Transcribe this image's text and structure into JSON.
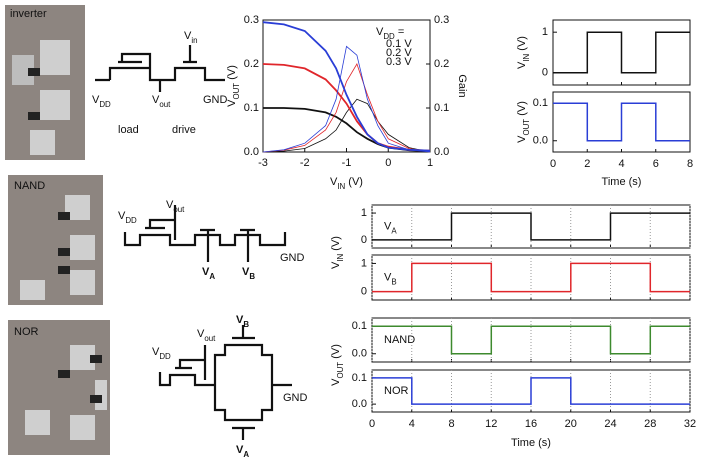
{
  "schematics": {
    "inverter": {
      "photo_label": "inverter",
      "vdd": [
        "V",
        "DD"
      ],
      "vin": [
        "V",
        "in"
      ],
      "vout": [
        "V",
        "out"
      ],
      "gnd": "GND",
      "load": "load",
      "drive": "drive"
    },
    "nand": {
      "photo_label": "NAND",
      "vdd": [
        "V",
        "DD"
      ],
      "vout": [
        "V",
        "out"
      ],
      "va": [
        "V",
        "A"
      ],
      "vb": [
        "V",
        "B"
      ],
      "gnd": "GND"
    },
    "nor": {
      "photo_label": "NOR",
      "vdd": [
        "V",
        "DD"
      ],
      "vout": [
        "V",
        "out"
      ],
      "vb": [
        "V",
        "B"
      ],
      "va": [
        "V",
        "A"
      ],
      "gnd": "GND"
    }
  },
  "chart_data": [
    {
      "type": "line",
      "xlabel": [
        "V",
        "IN",
        " (V)"
      ],
      "ylabel": [
        "V",
        "OUT",
        " (V)"
      ],
      "y2label": "Gain",
      "legend_title": [
        "V",
        "DD",
        " ="
      ],
      "x": [
        -3,
        -2.5,
        -2,
        -1.5,
        -1.25,
        -1,
        -0.75,
        -0.5,
        -0.25,
        0,
        0.5,
        1
      ],
      "xlim": [
        -3,
        1
      ],
      "xticks": [
        -3,
        -2,
        -1,
        0,
        1
      ],
      "ylim": [
        0,
        0.3
      ],
      "yticks": [
        {
          "value": 0,
          "label": "0.0"
        },
        0.1,
        0.2,
        0.3
      ],
      "y2lim": [
        0,
        0.3
      ],
      "y2ticks": [
        {
          "value": 0,
          "label": "0.0"
        },
        0.1,
        0.2,
        0.3
      ],
      "series": [
        {
          "name": "0.1 V",
          "color": "#111111",
          "values": [
            0.1,
            0.1,
            0.098,
            0.09,
            0.08,
            0.065,
            0.045,
            0.03,
            0.018,
            0.01,
            0.004,
            0.002
          ],
          "gain": [
            0,
            0.002,
            0.008,
            0.03,
            0.05,
            0.09,
            0.12,
            0.11,
            0.07,
            0.04,
            0.01,
            0
          ]
        },
        {
          "name": "0.2 V",
          "color": "#e0262b",
          "values": [
            0.2,
            0.198,
            0.19,
            0.165,
            0.14,
            0.11,
            0.07,
            0.04,
            0.02,
            0.012,
            0.005,
            0.003
          ],
          "gain": [
            0,
            0.004,
            0.015,
            0.05,
            0.09,
            0.16,
            0.2,
            0.13,
            0.07,
            0.03,
            0.008,
            0
          ]
        },
        {
          "name": "0.3 V",
          "color": "#2a3ed6",
          "values": [
            0.295,
            0.29,
            0.275,
            0.23,
            0.19,
            0.13,
            0.08,
            0.04,
            0.02,
            0.01,
            0.005,
            0.003
          ],
          "gain": [
            0,
            0.005,
            0.02,
            0.06,
            0.12,
            0.24,
            0.22,
            0.12,
            0.06,
            0.02,
            0.005,
            0
          ]
        }
      ]
    },
    {
      "type": "step",
      "xlabel": "Time (s)",
      "x": [
        0,
        2,
        2,
        4,
        4,
        6,
        6,
        8
      ],
      "xlim": [
        0,
        8
      ],
      "xticks": [
        0,
        2,
        4,
        6,
        8
      ],
      "panels": [
        {
          "ylabel": [
            "V",
            "IN",
            " (V)"
          ],
          "ylim": [
            -0.3,
            1.3
          ],
          "yticks": [
            0,
            1
          ],
          "color": "#111111",
          "values": [
            0,
            0,
            1,
            1,
            0,
            0,
            1,
            1
          ]
        },
        {
          "ylabel": [
            "V",
            "OUT",
            " (V)"
          ],
          "ylim": [
            -0.03,
            0.13
          ],
          "yticks": [
            {
              "value": 0,
              "label": "0.0"
            },
            0.1
          ],
          "color": "#2a3ed6",
          "values": [
            0.1,
            0.1,
            0,
            0,
            0.1,
            0.1,
            0,
            0
          ]
        }
      ]
    },
    {
      "type": "step",
      "xlabel": "Time (s)",
      "x": [
        0,
        4,
        4,
        8,
        8,
        12,
        12,
        16,
        16,
        20,
        20,
        24,
        24,
        28,
        28,
        32
      ],
      "xlim": [
        0,
        32
      ],
      "xticks": [
        0,
        4,
        8,
        12,
        16,
        20,
        24,
        28,
        32
      ],
      "grid": true,
      "group_ylabels": [
        [
          "V",
          "IN",
          " (V)"
        ],
        [
          "V",
          "OUT",
          " (V)"
        ]
      ],
      "panels": [
        {
          "label": [
            "V",
            "A"
          ],
          "ylim": [
            -0.3,
            1.3
          ],
          "yticks": [
            0,
            1
          ],
          "color": "#111111",
          "values": [
            0,
            0,
            0,
            0,
            1,
            1,
            1,
            1,
            0,
            0,
            0,
            0,
            1,
            1,
            1,
            1
          ]
        },
        {
          "label": [
            "V",
            "B"
          ],
          "ylim": [
            -0.3,
            1.3
          ],
          "yticks": [
            0,
            1
          ],
          "color": "#e0262b",
          "values": [
            0,
            0,
            1,
            1,
            1,
            1,
            0,
            0,
            0,
            0,
            1,
            1,
            1,
            1,
            0,
            0
          ]
        },
        {
          "label": "NAND",
          "ylim": [
            -0.03,
            0.13
          ],
          "yticks": [
            {
              "value": 0,
              "label": "0.0"
            },
            0.1
          ],
          "color": "#3d8a2e",
          "values": [
            0.1,
            0.1,
            0.1,
            0.1,
            0,
            0,
            0.1,
            0.1,
            0.1,
            0.1,
            0.1,
            0.1,
            0,
            0,
            0.1,
            0.1
          ]
        },
        {
          "label": "NOR",
          "ylim": [
            -0.03,
            0.13
          ],
          "yticks": [
            {
              "value": 0,
              "label": "0.0"
            },
            0.1
          ],
          "color": "#2a3ed6",
          "values": [
            0.1,
            0.1,
            0,
            0,
            0,
            0,
            0,
            0,
            0.1,
            0.1,
            0,
            0,
            0,
            0,
            0,
            0
          ]
        }
      ]
    }
  ]
}
